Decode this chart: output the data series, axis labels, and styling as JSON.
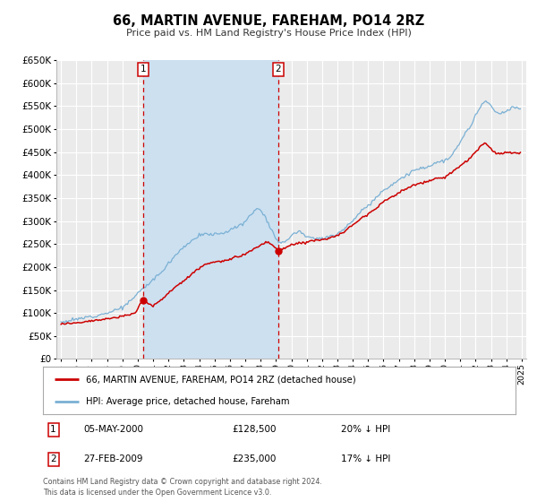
{
  "title": "66, MARTIN AVENUE, FAREHAM, PO14 2RZ",
  "subtitle": "Price paid vs. HM Land Registry's House Price Index (HPI)",
  "ylim": [
    0,
    650000
  ],
  "yticks": [
    0,
    50000,
    100000,
    150000,
    200000,
    250000,
    300000,
    350000,
    400000,
    450000,
    500000,
    550000,
    600000,
    650000
  ],
  "xlim_start": 1994.7,
  "xlim_end": 2025.3,
  "background_color": "#ffffff",
  "plot_bg_color": "#ebebeb",
  "grid_color": "#ffffff",
  "red_line_color": "#cc0000",
  "blue_line_color": "#7ab0d4",
  "shade_color": "#cce0f0",
  "sale1_x": 2000.35,
  "sale1_y": 128500,
  "sale2_x": 2009.15,
  "sale2_y": 235000,
  "sale1_label": "05-MAY-2000",
  "sale1_price": "£128,500",
  "sale1_hpi": "20% ↓ HPI",
  "sale2_label": "27-FEB-2009",
  "sale2_price": "£235,000",
  "sale2_hpi": "17% ↓ HPI",
  "legend_line1": "66, MARTIN AVENUE, FAREHAM, PO14 2RZ (detached house)",
  "legend_line2": "HPI: Average price, detached house, Fareham",
  "footnote": "Contains HM Land Registry data © Crown copyright and database right 2024.\nThis data is licensed under the Open Government Licence v3.0.",
  "shade_region": [
    2000.35,
    2009.15
  ],
  "hpi_key_points": [
    [
      1995.0,
      80000
    ],
    [
      1996.0,
      86000
    ],
    [
      1997.0,
      93000
    ],
    [
      1998.0,
      100000
    ],
    [
      1999.0,
      112000
    ],
    [
      1999.5,
      125000
    ],
    [
      2000.0,
      143000
    ],
    [
      2000.5,
      158000
    ],
    [
      2001.0,
      172000
    ],
    [
      2001.5,
      188000
    ],
    [
      2002.0,
      208000
    ],
    [
      2002.5,
      228000
    ],
    [
      2003.0,
      244000
    ],
    [
      2003.5,
      258000
    ],
    [
      2004.0,
      268000
    ],
    [
      2004.5,
      272000
    ],
    [
      2005.0,
      271000
    ],
    [
      2005.5,
      274000
    ],
    [
      2006.0,
      280000
    ],
    [
      2006.5,
      288000
    ],
    [
      2007.0,
      298000
    ],
    [
      2007.5,
      320000
    ],
    [
      2007.8,
      330000
    ],
    [
      2008.3,
      310000
    ],
    [
      2008.7,
      282000
    ],
    [
      2009.0,
      262000
    ],
    [
      2009.3,
      252000
    ],
    [
      2009.7,
      258000
    ],
    [
      2010.0,
      270000
    ],
    [
      2010.5,
      278000
    ],
    [
      2011.0,
      268000
    ],
    [
      2011.5,
      263000
    ],
    [
      2012.0,
      262000
    ],
    [
      2012.5,
      265000
    ],
    [
      2013.0,
      273000
    ],
    [
      2013.5,
      285000
    ],
    [
      2014.0,
      302000
    ],
    [
      2014.5,
      318000
    ],
    [
      2015.0,
      335000
    ],
    [
      2015.5,
      350000
    ],
    [
      2016.0,
      368000
    ],
    [
      2016.5,
      378000
    ],
    [
      2017.0,
      390000
    ],
    [
      2017.5,
      400000
    ],
    [
      2018.0,
      410000
    ],
    [
      2018.5,
      415000
    ],
    [
      2019.0,
      420000
    ],
    [
      2019.5,
      428000
    ],
    [
      2020.0,
      432000
    ],
    [
      2020.3,
      435000
    ],
    [
      2020.7,
      455000
    ],
    [
      2021.0,
      472000
    ],
    [
      2021.3,
      490000
    ],
    [
      2021.7,
      508000
    ],
    [
      2022.0,
      528000
    ],
    [
      2022.3,
      548000
    ],
    [
      2022.6,
      562000
    ],
    [
      2022.9,
      555000
    ],
    [
      2023.2,
      540000
    ],
    [
      2023.6,
      532000
    ],
    [
      2024.0,
      538000
    ],
    [
      2024.4,
      548000
    ],
    [
      2024.8,
      545000
    ]
  ],
  "red_key_points": [
    [
      1995.0,
      76000
    ],
    [
      1996.0,
      79000
    ],
    [
      1997.0,
      83000
    ],
    [
      1998.0,
      87000
    ],
    [
      1999.0,
      92000
    ],
    [
      1999.8,
      100000
    ],
    [
      2000.35,
      128500
    ],
    [
      2000.8,
      118000
    ],
    [
      2001.0,
      115000
    ],
    [
      2001.5,
      128000
    ],
    [
      2002.0,
      143000
    ],
    [
      2002.5,
      158000
    ],
    [
      2003.0,
      170000
    ],
    [
      2003.5,
      185000
    ],
    [
      2004.0,
      198000
    ],
    [
      2004.5,
      207000
    ],
    [
      2005.0,
      211000
    ],
    [
      2005.5,
      213000
    ],
    [
      2006.0,
      216000
    ],
    [
      2006.5,
      222000
    ],
    [
      2007.0,
      228000
    ],
    [
      2007.5,
      238000
    ],
    [
      2008.0,
      248000
    ],
    [
      2008.5,
      255000
    ],
    [
      2009.15,
      235000
    ],
    [
      2009.5,
      240000
    ],
    [
      2010.0,
      248000
    ],
    [
      2010.5,
      252000
    ],
    [
      2011.0,
      255000
    ],
    [
      2011.5,
      258000
    ],
    [
      2012.0,
      260000
    ],
    [
      2012.5,
      263000
    ],
    [
      2013.0,
      268000
    ],
    [
      2013.5,
      278000
    ],
    [
      2014.0,
      292000
    ],
    [
      2014.5,
      305000
    ],
    [
      2015.0,
      316000
    ],
    [
      2015.5,
      328000
    ],
    [
      2016.0,
      342000
    ],
    [
      2016.5,
      352000
    ],
    [
      2017.0,
      362000
    ],
    [
      2017.5,
      370000
    ],
    [
      2018.0,
      378000
    ],
    [
      2018.5,
      383000
    ],
    [
      2019.0,
      388000
    ],
    [
      2019.5,
      392000
    ],
    [
      2020.0,
      395000
    ],
    [
      2020.5,
      408000
    ],
    [
      2021.0,
      420000
    ],
    [
      2021.5,
      432000
    ],
    [
      2022.0,
      450000
    ],
    [
      2022.3,
      462000
    ],
    [
      2022.6,
      470000
    ],
    [
      2022.9,
      462000
    ],
    [
      2023.2,
      450000
    ],
    [
      2023.6,
      446000
    ],
    [
      2024.0,
      450000
    ],
    [
      2024.4,
      448000
    ],
    [
      2024.8,
      447000
    ]
  ]
}
